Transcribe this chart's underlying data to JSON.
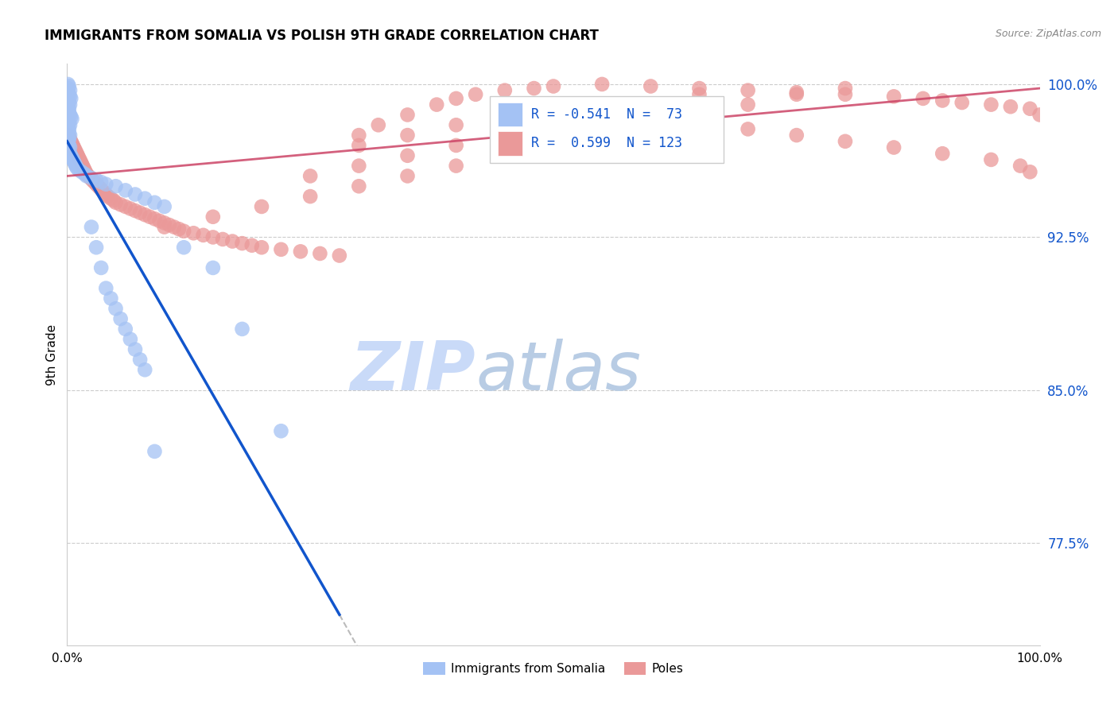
{
  "title": "IMMIGRANTS FROM SOMALIA VS POLISH 9TH GRADE CORRELATION CHART",
  "source": "Source: ZipAtlas.com",
  "ylabel": "9th Grade",
  "xlim": [
    0.0,
    1.0
  ],
  "ylim": [
    0.725,
    1.01
  ],
  "yticks": [
    0.775,
    0.85,
    0.925,
    1.0
  ],
  "ytick_labels": [
    "77.5%",
    "85.0%",
    "92.5%",
    "100.0%"
  ],
  "legend_label1": "Immigrants from Somalia",
  "legend_label2": "Poles",
  "r_somalia": -0.541,
  "n_somalia": 73,
  "r_poles": 0.599,
  "n_poles": 123,
  "somalia_color": "#a4c2f4",
  "poles_color": "#ea9999",
  "somalia_line_color": "#1155cc",
  "poles_line_color": "#cc4466",
  "watermark_zip": "ZIP",
  "watermark_atlas": "atlas",
  "watermark_color_zip": "#c9daf8",
  "watermark_color_atlas": "#b8cce4",
  "somalia_x": [
    0.001,
    0.002,
    0.001,
    0.003,
    0.001,
    0.002,
    0.003,
    0.004,
    0.001,
    0.002,
    0.003,
    0.001,
    0.002,
    0.001,
    0.002,
    0.003,
    0.004,
    0.005,
    0.001,
    0.002,
    0.003,
    0.001,
    0.002,
    0.001,
    0.002,
    0.003,
    0.001,
    0.002,
    0.001,
    0.001,
    0.002,
    0.003,
    0.001,
    0.002,
    0.003,
    0.004,
    0.005,
    0.006,
    0.007,
    0.008,
    0.009,
    0.01,
    0.012,
    0.015,
    0.018,
    0.02,
    0.025,
    0.03,
    0.035,
    0.04,
    0.05,
    0.06,
    0.07,
    0.08,
    0.09,
    0.1,
    0.12,
    0.15,
    0.18,
    0.22,
    0.025,
    0.03,
    0.035,
    0.04,
    0.045,
    0.05,
    0.055,
    0.06,
    0.065,
    0.07,
    0.075,
    0.08,
    0.09
  ],
  "somalia_y": [
    1.0,
    0.999,
    0.998,
    0.997,
    0.996,
    0.995,
    0.994,
    0.993,
    0.992,
    0.991,
    0.99,
    0.989,
    0.988,
    0.987,
    0.986,
    0.985,
    0.984,
    0.983,
    0.982,
    0.981,
    0.98,
    0.979,
    0.978,
    0.977,
    0.976,
    0.975,
    0.974,
    0.973,
    0.972,
    0.971,
    0.97,
    0.969,
    0.968,
    0.967,
    0.966,
    0.965,
    0.964,
    0.963,
    0.962,
    0.961,
    0.96,
    0.959,
    0.958,
    0.957,
    0.956,
    0.955,
    0.954,
    0.953,
    0.952,
    0.951,
    0.95,
    0.948,
    0.946,
    0.944,
    0.942,
    0.94,
    0.92,
    0.91,
    0.88,
    0.83,
    0.93,
    0.92,
    0.91,
    0.9,
    0.895,
    0.89,
    0.885,
    0.88,
    0.875,
    0.87,
    0.865,
    0.86,
    0.82
  ],
  "poles_x": [
    0.001,
    0.002,
    0.003,
    0.004,
    0.005,
    0.006,
    0.007,
    0.008,
    0.009,
    0.01,
    0.011,
    0.012,
    0.013,
    0.014,
    0.015,
    0.016,
    0.017,
    0.018,
    0.019,
    0.02,
    0.022,
    0.024,
    0.026,
    0.028,
    0.03,
    0.032,
    0.034,
    0.036,
    0.038,
    0.04,
    0.042,
    0.045,
    0.048,
    0.05,
    0.055,
    0.06,
    0.065,
    0.07,
    0.075,
    0.08,
    0.085,
    0.09,
    0.095,
    0.1,
    0.105,
    0.11,
    0.115,
    0.12,
    0.13,
    0.14,
    0.15,
    0.16,
    0.17,
    0.18,
    0.19,
    0.2,
    0.22,
    0.24,
    0.26,
    0.28,
    0.3,
    0.32,
    0.35,
    0.38,
    0.4,
    0.42,
    0.45,
    0.48,
    0.5,
    0.55,
    0.6,
    0.65,
    0.7,
    0.75,
    0.8,
    0.85,
    0.88,
    0.9,
    0.92,
    0.95,
    0.97,
    0.99,
    0.3,
    0.35,
    0.4,
    0.45,
    0.5,
    0.55,
    0.6,
    0.65,
    0.7,
    0.75,
    0.8,
    0.85,
    0.9,
    0.95,
    0.98,
    0.99,
    1.0,
    0.1,
    0.15,
    0.2,
    0.25,
    0.3,
    0.35,
    0.4,
    0.45,
    0.5,
    0.55,
    0.6,
    0.65,
    0.7,
    0.75,
    0.8,
    0.25,
    0.3,
    0.35,
    0.4,
    0.45,
    0.5,
    0.55,
    0.6,
    0.65
  ],
  "poles_y": [
    0.975,
    0.974,
    0.973,
    0.972,
    0.971,
    0.97,
    0.969,
    0.968,
    0.967,
    0.966,
    0.965,
    0.964,
    0.963,
    0.962,
    0.961,
    0.96,
    0.959,
    0.958,
    0.957,
    0.956,
    0.955,
    0.954,
    0.953,
    0.952,
    0.951,
    0.95,
    0.949,
    0.948,
    0.947,
    0.946,
    0.945,
    0.944,
    0.943,
    0.942,
    0.941,
    0.94,
    0.939,
    0.938,
    0.937,
    0.936,
    0.935,
    0.934,
    0.933,
    0.932,
    0.931,
    0.93,
    0.929,
    0.928,
    0.927,
    0.926,
    0.925,
    0.924,
    0.923,
    0.922,
    0.921,
    0.92,
    0.919,
    0.918,
    0.917,
    0.916,
    0.975,
    0.98,
    0.985,
    0.99,
    0.993,
    0.995,
    0.997,
    0.998,
    0.999,
    1.0,
    0.999,
    0.998,
    0.997,
    0.996,
    0.995,
    0.994,
    0.993,
    0.992,
    0.991,
    0.99,
    0.989,
    0.988,
    0.97,
    0.975,
    0.98,
    0.985,
    0.99,
    0.987,
    0.984,
    0.981,
    0.978,
    0.975,
    0.972,
    0.969,
    0.966,
    0.963,
    0.96,
    0.957,
    0.985,
    0.93,
    0.935,
    0.94,
    0.945,
    0.95,
    0.955,
    0.96,
    0.965,
    0.97,
    0.975,
    0.98,
    0.985,
    0.99,
    0.995,
    0.998,
    0.955,
    0.96,
    0.965,
    0.97,
    0.975,
    0.98,
    0.985,
    0.99,
    0.995
  ]
}
